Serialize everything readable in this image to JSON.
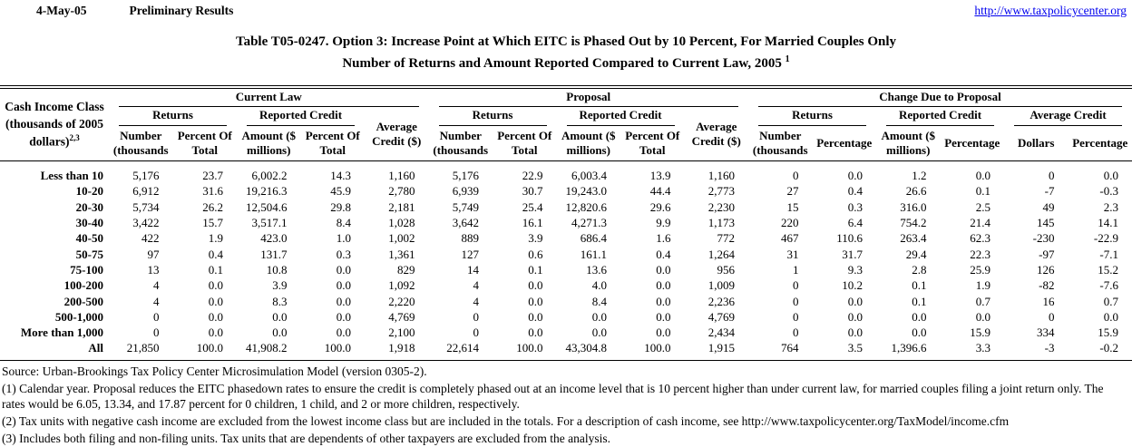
{
  "header": {
    "date": "4-May-05",
    "status": "Preliminary Results",
    "link": "http://www.taxpolicycenter.org"
  },
  "title": {
    "line1": "Table T05-0247. Option 3: Increase Point at Which EITC is Phased Out by 10 Percent, For Married Couples Only",
    "line2": "Number of Returns and Amount Reported Compared to Current Law, 2005",
    "sup": "1"
  },
  "table": {
    "row_header": {
      "line1": "Cash Income Class",
      "line2": "(thousands of 2005",
      "line3": "dollars)",
      "sup": "2,3"
    },
    "groups": {
      "current_law": "Current Law",
      "proposal": "Proposal",
      "change": "Change Due to Proposal"
    },
    "subgroups": {
      "returns": "Returns",
      "reported_credit": "Reported Credit",
      "avg_line1": "Average",
      "avg_line2": "Credit ($)",
      "avg_change": "Average Credit"
    },
    "cols": {
      "number_l1": "Number",
      "number_l2": "(thousands",
      "pct_l1": "Percent Of",
      "pct_l2": "Total",
      "amount_l1": "Amount ($",
      "amount_l2": "millions)",
      "percentage": "Percentage",
      "dollars": "Dollars"
    },
    "rows": [
      {
        "label": "Less than 10",
        "values": [
          "5,176",
          "23.7",
          "6,002.2",
          "14.3",
          "1,160",
          "5,176",
          "22.9",
          "6,003.4",
          "13.9",
          "1,160",
          "0",
          "0.0",
          "1.2",
          "0.0",
          "0",
          "0.0"
        ]
      },
      {
        "label": "10-20",
        "values": [
          "6,912",
          "31.6",
          "19,216.3",
          "45.9",
          "2,780",
          "6,939",
          "30.7",
          "19,243.0",
          "44.4",
          "2,773",
          "27",
          "0.4",
          "26.6",
          "0.1",
          "-7",
          "-0.3"
        ]
      },
      {
        "label": "20-30",
        "values": [
          "5,734",
          "26.2",
          "12,504.6",
          "29.8",
          "2,181",
          "5,749",
          "25.4",
          "12,820.6",
          "29.6",
          "2,230",
          "15",
          "0.3",
          "316.0",
          "2.5",
          "49",
          "2.3"
        ]
      },
      {
        "label": "30-40",
        "values": [
          "3,422",
          "15.7",
          "3,517.1",
          "8.4",
          "1,028",
          "3,642",
          "16.1",
          "4,271.3",
          "9.9",
          "1,173",
          "220",
          "6.4",
          "754.2",
          "21.4",
          "145",
          "14.1"
        ]
      },
      {
        "label": "40-50",
        "values": [
          "422",
          "1.9",
          "423.0",
          "1.0",
          "1,002",
          "889",
          "3.9",
          "686.4",
          "1.6",
          "772",
          "467",
          "110.6",
          "263.4",
          "62.3",
          "-230",
          "-22.9"
        ]
      },
      {
        "label": "50-75",
        "values": [
          "97",
          "0.4",
          "131.7",
          "0.3",
          "1,361",
          "127",
          "0.6",
          "161.1",
          "0.4",
          "1,264",
          "31",
          "31.7",
          "29.4",
          "22.3",
          "-97",
          "-7.1"
        ]
      },
      {
        "label": "75-100",
        "values": [
          "13",
          "0.1",
          "10.8",
          "0.0",
          "829",
          "14",
          "0.1",
          "13.6",
          "0.0",
          "956",
          "1",
          "9.3",
          "2.8",
          "25.9",
          "126",
          "15.2"
        ]
      },
      {
        "label": "100-200",
        "values": [
          "4",
          "0.0",
          "3.9",
          "0.0",
          "1,092",
          "4",
          "0.0",
          "4.0",
          "0.0",
          "1,009",
          "0",
          "10.2",
          "0.1",
          "1.9",
          "-82",
          "-7.6"
        ]
      },
      {
        "label": "200-500",
        "values": [
          "4",
          "0.0",
          "8.3",
          "0.0",
          "2,220",
          "4",
          "0.0",
          "8.4",
          "0.0",
          "2,236",
          "0",
          "0.0",
          "0.1",
          "0.7",
          "16",
          "0.7"
        ]
      },
      {
        "label": "500-1,000",
        "values": [
          "0",
          "0.0",
          "0.0",
          "0.0",
          "4,769",
          "0",
          "0.0",
          "0.0",
          "0.0",
          "4,769",
          "0",
          "0.0",
          "0.0",
          "0.0",
          "0",
          "0.0"
        ]
      },
      {
        "label": "More than 1,000",
        "values": [
          "0",
          "0.0",
          "0.0",
          "0.0",
          "2,100",
          "0",
          "0.0",
          "0.0",
          "0.0",
          "2,434",
          "0",
          "0.0",
          "0.0",
          "15.9",
          "334",
          "15.9"
        ]
      },
      {
        "label": "All",
        "values": [
          "21,850",
          "100.0",
          "41,908.2",
          "100.0",
          "1,918",
          "22,614",
          "100.0",
          "43,304.8",
          "100.0",
          "1,915",
          "764",
          "3.5",
          "1,396.6",
          "3.3",
          "-3",
          "-0.2"
        ]
      }
    ]
  },
  "footnotes": {
    "source": "Source: Urban-Brookings Tax Policy Center Microsimulation Model (version 0305-2).",
    "fn1": "(1) Calendar year. Proposal reduces the EITC phasedown rates to ensure the credit is completely phased out at an income level that is 10 percent higher than under current law, for married couples filing a joint return only. The rates would be 6.05, 13.34, and 17.87 percent for 0 children, 1 child, and 2 or more children, respectively.",
    "fn2": "(2) Tax units with negative cash income are excluded from the lowest income class but are included in the totals. For a description of cash income, see http://www.taxpolicycenter.org/TaxModel/income.cfm",
    "fn3": "(3) Includes both filing and non-filing units.  Tax units that are dependents of other taxpayers are excluded from the analysis."
  }
}
